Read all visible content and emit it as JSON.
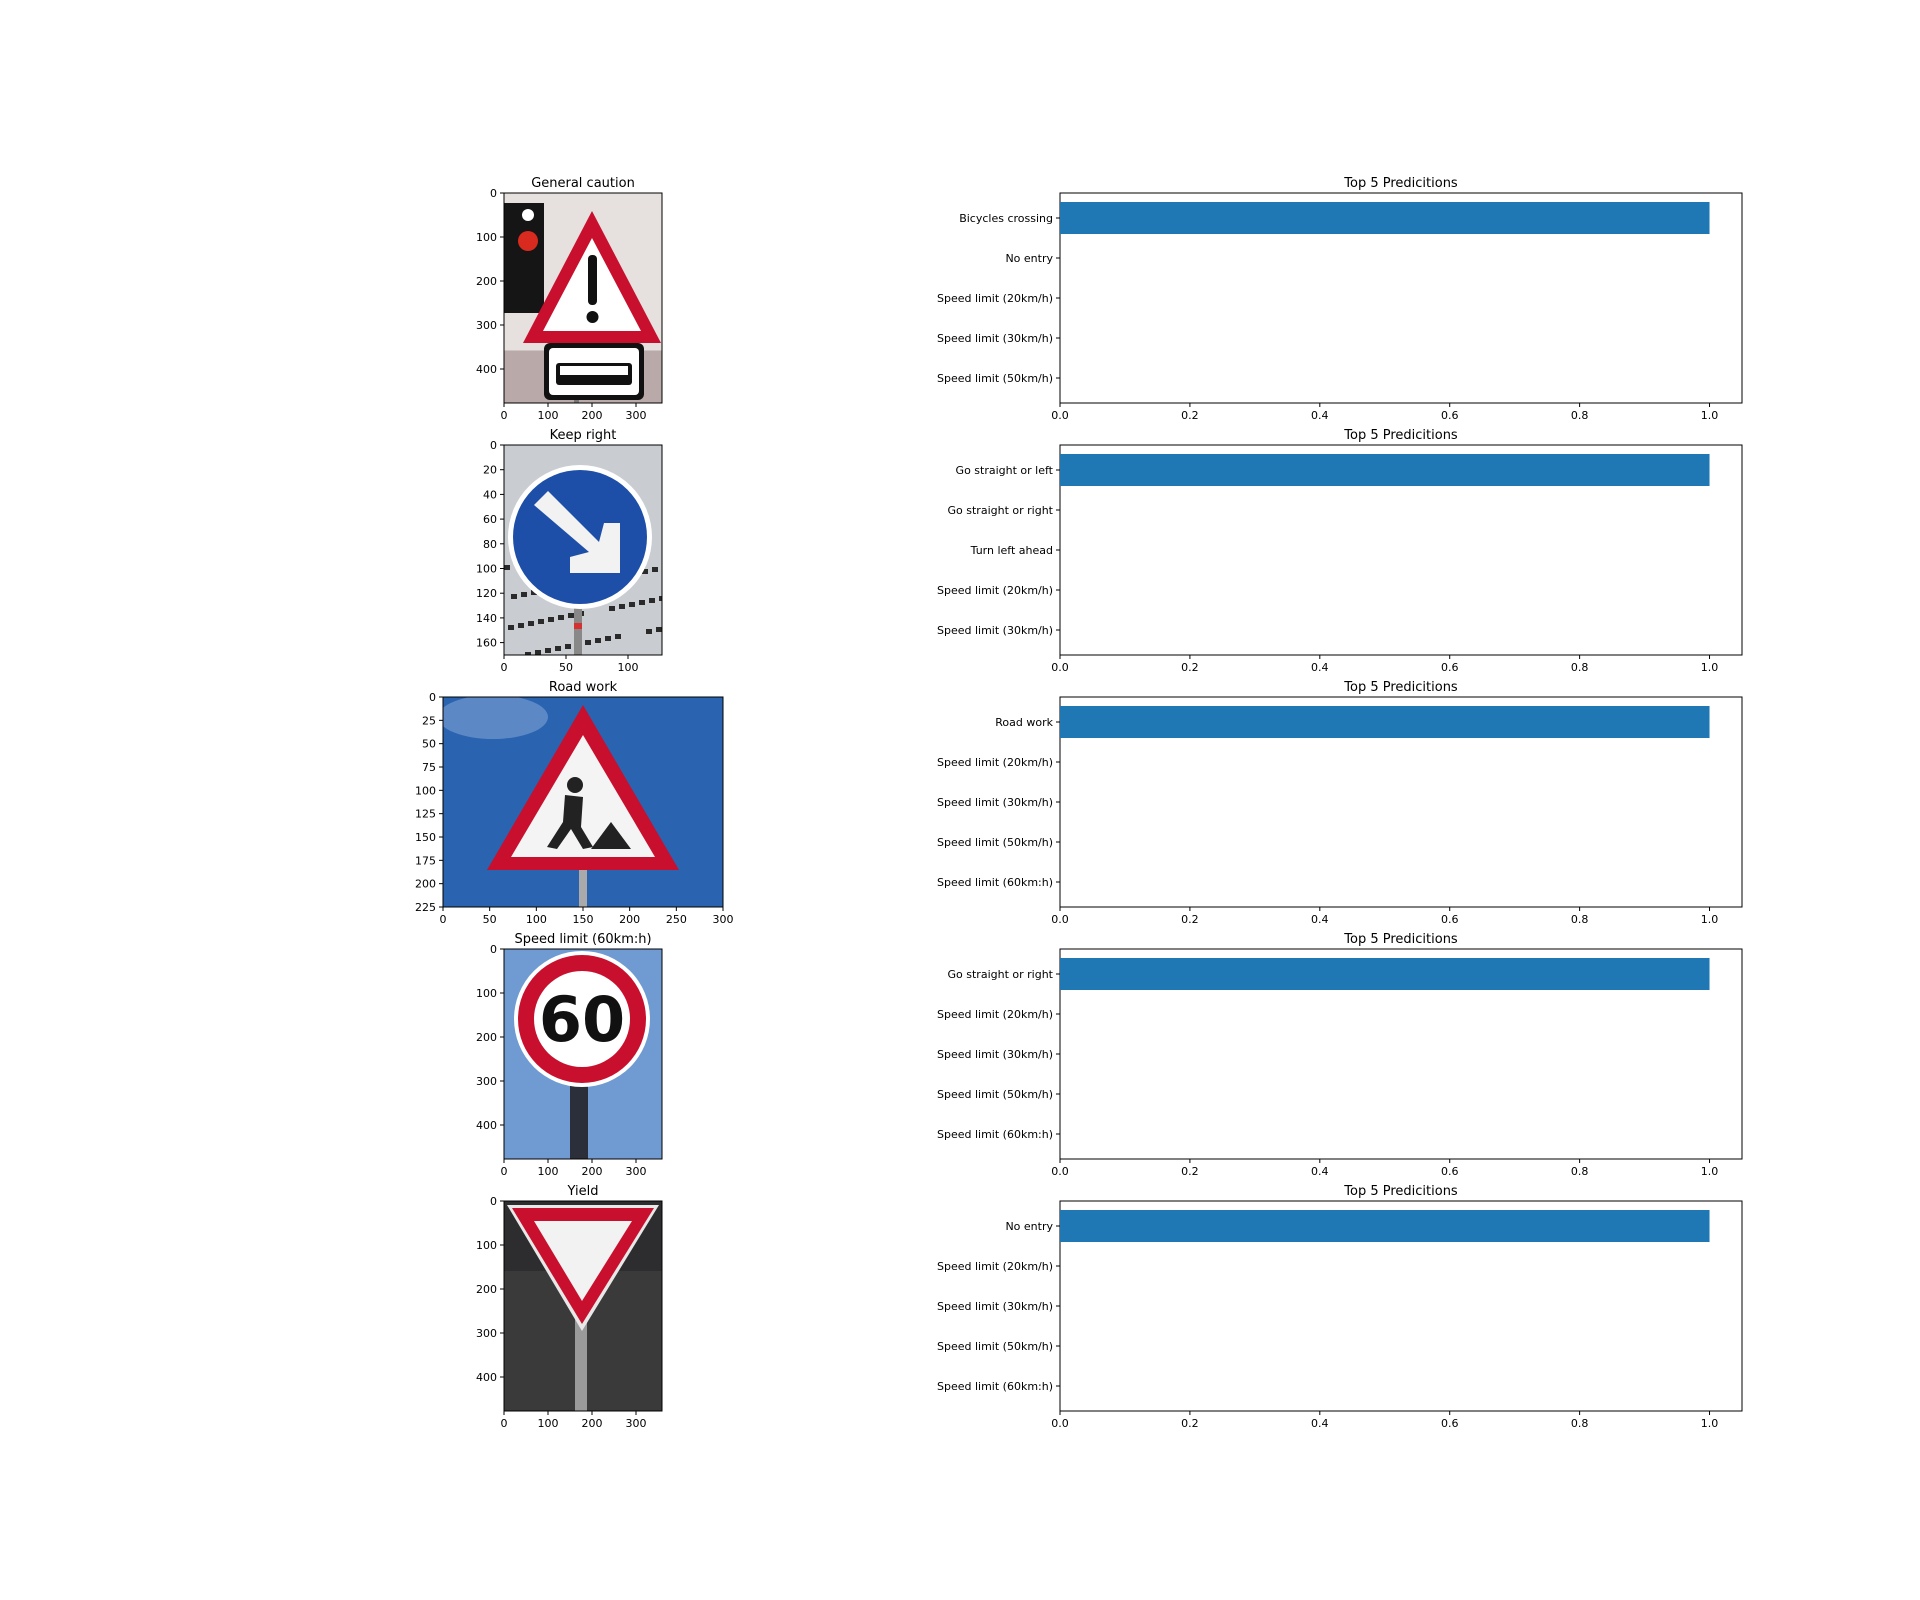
{
  "colors": {
    "bar": "#1f77b4",
    "sign_red": "#c8102e",
    "sign_blue": "#1e4fa8",
    "sky_blue": "#2a63b0",
    "dark": "#1a1a1a"
  },
  "images": [
    {
      "title": "General caution",
      "icon": "general-caution-sign-icon",
      "xticks": [
        "0",
        "100",
        "200",
        "300"
      ],
      "yticks": [
        "0",
        "100",
        "200",
        "300",
        "400"
      ]
    },
    {
      "title": "Keep right",
      "icon": "keep-right-sign-icon",
      "xticks": [
        "0",
        "50",
        "100"
      ],
      "yticks": [
        "0",
        "20",
        "40",
        "60",
        "80",
        "100",
        "120",
        "140",
        "160"
      ]
    },
    {
      "title": "Road work",
      "icon": "road-work-sign-icon",
      "xticks": [
        "0",
        "50",
        "100",
        "150",
        "200",
        "250",
        "300"
      ],
      "yticks": [
        "0",
        "25",
        "50",
        "75",
        "100",
        "125",
        "150",
        "175",
        "200",
        "225"
      ]
    },
    {
      "title": "Speed limit (60km:h)",
      "icon": "speed-limit-60-sign-icon",
      "sign_text": "60",
      "xticks": [
        "0",
        "100",
        "200",
        "300"
      ],
      "yticks": [
        "0",
        "100",
        "200",
        "300",
        "400"
      ]
    },
    {
      "title": "Yield",
      "icon": "yield-sign-icon",
      "xticks": [
        "0",
        "100",
        "200",
        "300"
      ],
      "yticks": [
        "0",
        "100",
        "200",
        "300",
        "400"
      ]
    }
  ],
  "chart_data": [
    {
      "type": "bar",
      "orientation": "horizontal",
      "title": "Top 5 Predicitions",
      "categories": [
        "Bicycles crossing",
        "No entry",
        "Speed limit (20km/h)",
        "Speed limit (30km/h)",
        "Speed limit (50km/h)"
      ],
      "values": [
        1.0,
        0.0,
        0.0,
        0.0,
        0.0
      ],
      "xlim": [
        0,
        1.05
      ],
      "xticks": [
        "0.0",
        "0.2",
        "0.4",
        "0.6",
        "0.8",
        "1.0"
      ],
      "grid": false
    },
    {
      "type": "bar",
      "orientation": "horizontal",
      "title": "Top 5 Predicitions",
      "categories": [
        "Go straight or left",
        "Go straight or right",
        "Turn left ahead",
        "Speed limit (20km/h)",
        "Speed limit (30km/h)"
      ],
      "values": [
        1.0,
        0.0,
        0.0,
        0.0,
        0.0
      ],
      "xlim": [
        0,
        1.05
      ],
      "xticks": [
        "0.0",
        "0.2",
        "0.4",
        "0.6",
        "0.8",
        "1.0"
      ],
      "grid": false
    },
    {
      "type": "bar",
      "orientation": "horizontal",
      "title": "Top 5 Predicitions",
      "categories": [
        "Road work",
        "Speed limit (20km/h)",
        "Speed limit (30km/h)",
        "Speed limit (50km/h)",
        "Speed limit (60km:h)"
      ],
      "values": [
        1.0,
        0.0,
        0.0,
        0.0,
        0.0
      ],
      "xlim": [
        0,
        1.05
      ],
      "xticks": [
        "0.0",
        "0.2",
        "0.4",
        "0.6",
        "0.8",
        "1.0"
      ],
      "grid": false
    },
    {
      "type": "bar",
      "orientation": "horizontal",
      "title": "Top 5 Predicitions",
      "categories": [
        "Go straight or right",
        "Speed limit (20km/h)",
        "Speed limit (30km/h)",
        "Speed limit (50km/h)",
        "Speed limit (60km:h)"
      ],
      "values": [
        1.0,
        0.0,
        0.0,
        0.0,
        0.0
      ],
      "xlim": [
        0,
        1.05
      ],
      "xticks": [
        "0.0",
        "0.2",
        "0.4",
        "0.6",
        "0.8",
        "1.0"
      ],
      "grid": false
    },
    {
      "type": "bar",
      "orientation": "horizontal",
      "title": "Top 5 Predicitions",
      "categories": [
        "No entry",
        "Speed limit (20km/h)",
        "Speed limit (30km/h)",
        "Speed limit (50km/h)",
        "Speed limit (60km:h)"
      ],
      "values": [
        1.0,
        0.0,
        0.0,
        0.0,
        0.0
      ],
      "xlim": [
        0,
        1.05
      ],
      "xticks": [
        "0.0",
        "0.2",
        "0.4",
        "0.6",
        "0.8",
        "1.0"
      ],
      "grid": false
    }
  ]
}
